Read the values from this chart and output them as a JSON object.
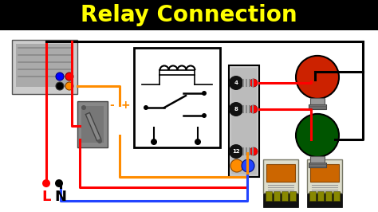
{
  "title": "Relay Connection",
  "title_color": "#FFFF00",
  "title_fontsize": 20,
  "title_fontweight": "bold",
  "bg_color": "#000000",
  "main_bg": "#FFFFFF",
  "wire_colors": {
    "red": "#FF0000",
    "black": "#000000",
    "blue": "#2244FF",
    "orange": "#FF8C00"
  },
  "labels": {
    "L": "L",
    "N": "N",
    "L_color": "#FF0000",
    "N_color": "#000000",
    "minus": "-",
    "plus": "+",
    "label_color": "#FF8C00"
  },
  "relay_pins": [
    "4",
    "8",
    "12"
  ],
  "pin_label_color": "#FFFFFF",
  "figsize": [
    4.74,
    2.66
  ],
  "dpi": 100
}
